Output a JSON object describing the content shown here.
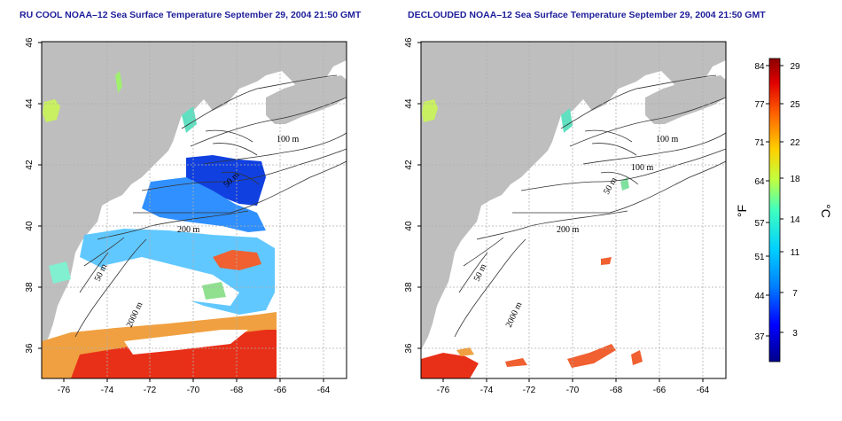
{
  "panels": [
    {
      "id": "ru-cool",
      "title": "RU COOL NOAA–12 Sea Surface Temperature September 29, 2004 21:50 GMT",
      "xticks": [
        "-76",
        "-74",
        "-72",
        "-70",
        "-68",
        "-66",
        "-64"
      ],
      "yticks": [
        "46",
        "44",
        "42",
        "40",
        "38",
        "36"
      ],
      "contour_labels": [
        "100 m",
        "50 m",
        "200 m",
        "50 m",
        "2000 m"
      ]
    },
    {
      "id": "declouded",
      "title": "DECLOUDED NOAA–12 Sea Surface Temperature September 29, 2004 21:50 GMT",
      "xticks": [
        "-76",
        "-74",
        "-72",
        "-70",
        "-68",
        "-66",
        "-64"
      ],
      "yticks": [
        "46",
        "44",
        "42",
        "40",
        "38",
        "36"
      ],
      "contour_labels": [
        "100 m",
        "100 m",
        "50 m",
        "200 m",
        "50 m",
        "2000 m"
      ]
    }
  ],
  "colorbar": {
    "fahrenheit_ticks": [
      "84",
      "77",
      "71",
      "64",
      "57",
      "51",
      "44",
      "37"
    ],
    "celsius_ticks": [
      "29",
      "25",
      "22",
      "18",
      "14",
      "11",
      "7",
      "3"
    ],
    "left_unit": "°F",
    "right_unit": "°C",
    "colors": [
      "#00008b",
      "#0000ff",
      "#0080ff",
      "#00d0ff",
      "#40ffc0",
      "#c0ff40",
      "#ffd000",
      "#ff6000",
      "#e00000",
      "#8b0000"
    ]
  },
  "colors": {
    "land": "#bebebe",
    "title": "#1d1d9a",
    "grid": "#b0b0b0"
  }
}
